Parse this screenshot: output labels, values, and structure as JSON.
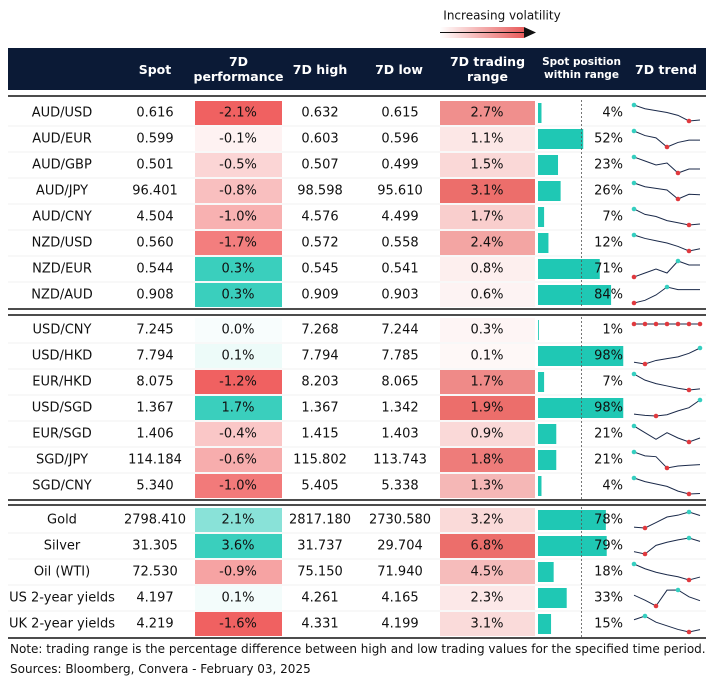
{
  "header": {
    "legend_label": "Increasing volatility",
    "columns": [
      "Spot",
      "7D performance",
      "7D high",
      "7D low",
      "7D trading range",
      "Spot position within range",
      "7D trend"
    ]
  },
  "groups": [
    {
      "rows": [
        {
          "pair": "AUD/USD",
          "spot": "0.616",
          "performance": {
            "value": -2.1,
            "label": "-2.1%"
          },
          "high": "0.632",
          "low": "0.615",
          "range": {
            "value": 2.7,
            "label": "2.7%"
          },
          "position": {
            "value": 4,
            "label": "4%"
          },
          "trend": [
            0.632,
            0.628,
            0.626,
            0.624,
            0.621,
            0.615,
            0.616
          ]
        },
        {
          "pair": "AUD/EUR",
          "spot": "0.599",
          "performance": {
            "value": -0.1,
            "label": "-0.1%"
          },
          "high": "0.603",
          "low": "0.596",
          "range": {
            "value": 1.1,
            "label": "1.1%"
          },
          "position": {
            "value": 52,
            "label": "52%"
          },
          "trend": [
            0.603,
            0.601,
            0.6,
            0.596,
            0.598,
            0.599,
            0.599
          ]
        },
        {
          "pair": "AUD/GBP",
          "spot": "0.501",
          "performance": {
            "value": -0.5,
            "label": "-0.5%"
          },
          "high": "0.507",
          "low": "0.499",
          "range": {
            "value": 1.5,
            "label": "1.5%"
          },
          "position": {
            "value": 23,
            "label": "23%"
          },
          "trend": [
            0.507,
            0.505,
            0.503,
            0.504,
            0.499,
            0.501,
            0.501
          ]
        },
        {
          "pair": "AUD/JPY",
          "spot": "96.401",
          "performance": {
            "value": -0.8,
            "label": "-0.8%"
          },
          "high": "98.598",
          "low": "95.610",
          "range": {
            "value": 3.1,
            "label": "3.1%"
          },
          "position": {
            "value": 26,
            "label": "26%"
          },
          "trend": [
            98.598,
            97.9,
            97.6,
            97.3,
            95.61,
            96.5,
            96.401
          ]
        },
        {
          "pair": "AUD/CNY",
          "spot": "4.504",
          "performance": {
            "value": -1.0,
            "label": "-1.0%"
          },
          "high": "4.576",
          "low": "4.499",
          "range": {
            "value": 1.7,
            "label": "1.7%"
          },
          "position": {
            "value": 7,
            "label": "7%"
          },
          "trend": [
            4.576,
            4.55,
            4.54,
            4.52,
            4.51,
            4.499,
            4.504
          ]
        },
        {
          "pair": "NZD/USD",
          "spot": "0.560",
          "performance": {
            "value": -1.7,
            "label": "-1.7%"
          },
          "high": "0.572",
          "low": "0.558",
          "range": {
            "value": 2.4,
            "label": "2.4%"
          },
          "position": {
            "value": 12,
            "label": "12%"
          },
          "trend": [
            0.572,
            0.569,
            0.567,
            0.565,
            0.562,
            0.558,
            0.56
          ]
        },
        {
          "pair": "NZD/EUR",
          "spot": "0.544",
          "performance": {
            "value": 0.3,
            "label": "0.3%"
          },
          "high": "0.545",
          "low": "0.541",
          "range": {
            "value": 0.8,
            "label": "0.8%"
          },
          "position": {
            "value": 71,
            "label": "71%"
          },
          "trend": [
            0.541,
            0.542,
            0.543,
            0.542,
            0.545,
            0.544,
            0.544
          ]
        },
        {
          "pair": "NZD/AUD",
          "spot": "0.908",
          "performance": {
            "value": 0.3,
            "label": "0.3%"
          },
          "high": "0.909",
          "low": "0.903",
          "range": {
            "value": 0.6,
            "label": "0.6%"
          },
          "position": {
            "value": 84,
            "label": "84%"
          },
          "trend": [
            0.903,
            0.904,
            0.906,
            0.909,
            0.908,
            0.908,
            0.908
          ]
        }
      ]
    },
    {
      "rows": [
        {
          "pair": "USD/CNY",
          "spot": "7.245",
          "performance": {
            "value": 0.0,
            "label": "0.0%"
          },
          "high": "7.268",
          "low": "7.244",
          "range": {
            "value": 0.3,
            "label": "0.3%"
          },
          "position": {
            "value": 1,
            "label": "1%"
          },
          "trend": [
            7.245,
            7.245,
            7.245,
            7.245,
            7.245,
            7.245,
            7.245
          ]
        },
        {
          "pair": "USD/HKD",
          "spot": "7.794",
          "performance": {
            "value": 0.1,
            "label": "0.1%"
          },
          "high": "7.794",
          "low": "7.785",
          "range": {
            "value": 0.1,
            "label": "0.1%"
          },
          "position": {
            "value": 98,
            "label": "98%"
          },
          "trend": [
            7.786,
            7.785,
            7.787,
            7.788,
            7.789,
            7.791,
            7.794
          ]
        },
        {
          "pair": "EUR/HKD",
          "spot": "8.075",
          "performance": {
            "value": -1.2,
            "label": "-1.2%"
          },
          "high": "8.203",
          "low": "8.065",
          "range": {
            "value": 1.7,
            "label": "1.7%"
          },
          "position": {
            "value": 7,
            "label": "7%"
          },
          "trend": [
            8.203,
            8.15,
            8.12,
            8.1,
            8.08,
            8.065,
            8.075
          ]
        },
        {
          "pair": "USD/SGD",
          "spot": "1.367",
          "performance": {
            "value": 1.7,
            "label": "1.7%"
          },
          "high": "1.367",
          "low": "1.342",
          "range": {
            "value": 1.9,
            "label": "1.9%"
          },
          "position": {
            "value": 98,
            "label": "98%"
          },
          "trend": [
            1.345,
            1.343,
            1.342,
            1.344,
            1.35,
            1.355,
            1.367
          ]
        },
        {
          "pair": "EUR/SGD",
          "spot": "1.406",
          "performance": {
            "value": -0.4,
            "label": "-0.4%"
          },
          "high": "1.415",
          "low": "1.403",
          "range": {
            "value": 0.9,
            "label": "0.9%"
          },
          "position": {
            "value": 21,
            "label": "21%"
          },
          "trend": [
            1.415,
            1.41,
            1.405,
            1.41,
            1.406,
            1.403,
            1.406
          ]
        },
        {
          "pair": "SGD/JPY",
          "spot": "114.184",
          "performance": {
            "value": -0.6,
            "label": "-0.6%"
          },
          "high": "115.802",
          "low": "113.743",
          "range": {
            "value": 1.8,
            "label": "1.8%"
          },
          "position": {
            "value": 21,
            "label": "21%"
          },
          "trend": [
            115.802,
            115.3,
            115.2,
            113.743,
            114.0,
            114.1,
            114.184
          ]
        },
        {
          "pair": "SGD/CNY",
          "spot": "5.340",
          "performance": {
            "value": -1.0,
            "label": "-1.0%"
          },
          "high": "5.405",
          "low": "5.338",
          "range": {
            "value": 1.3,
            "label": "1.3%"
          },
          "position": {
            "value": 4,
            "label": "4%"
          },
          "trend": [
            5.405,
            5.39,
            5.38,
            5.37,
            5.35,
            5.338,
            5.34
          ]
        }
      ]
    },
    {
      "rows": [
        {
          "pair": "Gold",
          "spot": "2798.410",
          "performance": {
            "value": 2.1,
            "label": "2.1%"
          },
          "high": "2817.180",
          "low": "2730.580",
          "range": {
            "value": 3.2,
            "label": "3.2%"
          },
          "position": {
            "value": 78,
            "label": "78%"
          },
          "trend": [
            2735,
            2730.58,
            2760,
            2790,
            2800,
            2817.18,
            2798.41
          ]
        },
        {
          "pair": "Silver",
          "spot": "31.305",
          "performance": {
            "value": 3.6,
            "label": "3.6%"
          },
          "high": "31.737",
          "low": "29.704",
          "range": {
            "value": 6.8,
            "label": "6.8%"
          },
          "position": {
            "value": 79,
            "label": "79%"
          },
          "trend": [
            30.0,
            29.704,
            30.8,
            31.2,
            31.5,
            31.737,
            31.305
          ]
        },
        {
          "pair": "Oil (WTI)",
          "spot": "72.530",
          "performance": {
            "value": -0.9,
            "label": "-0.9%"
          },
          "high": "75.150",
          "low": "71.940",
          "range": {
            "value": 4.5,
            "label": "4.5%"
          },
          "position": {
            "value": 18,
            "label": "18%"
          },
          "trend": [
            75.15,
            74.2,
            73.5,
            73.0,
            72.6,
            71.94,
            72.53
          ]
        },
        {
          "pair": "US 2-year yields",
          "spot": "4.197",
          "performance": {
            "value": 0.1,
            "label": "0.1%"
          },
          "high": "4.261",
          "low": "4.165",
          "range": {
            "value": 2.3,
            "label": "2.3%"
          },
          "position": {
            "value": 33,
            "label": "33%"
          },
          "trend": [
            4.23,
            4.2,
            4.165,
            4.26,
            4.261,
            4.22,
            4.197
          ]
        },
        {
          "pair": "UK 2-year yields",
          "spot": "4.219",
          "performance": {
            "value": -1.6,
            "label": "-1.6%"
          },
          "high": "4.331",
          "low": "4.199",
          "range": {
            "value": 3.1,
            "label": "3.1%"
          },
          "position": {
            "value": 15,
            "label": "15%"
          },
          "trend": [
            4.3,
            4.331,
            4.28,
            4.25,
            4.22,
            4.199,
            4.219
          ]
        }
      ]
    }
  ],
  "footer": {
    "note": "Note: trading range is the percentage difference between high and low trading values for the specified time period.",
    "sources": "Sources: Bloomberg, Convera - February 03, 2025"
  }
}
